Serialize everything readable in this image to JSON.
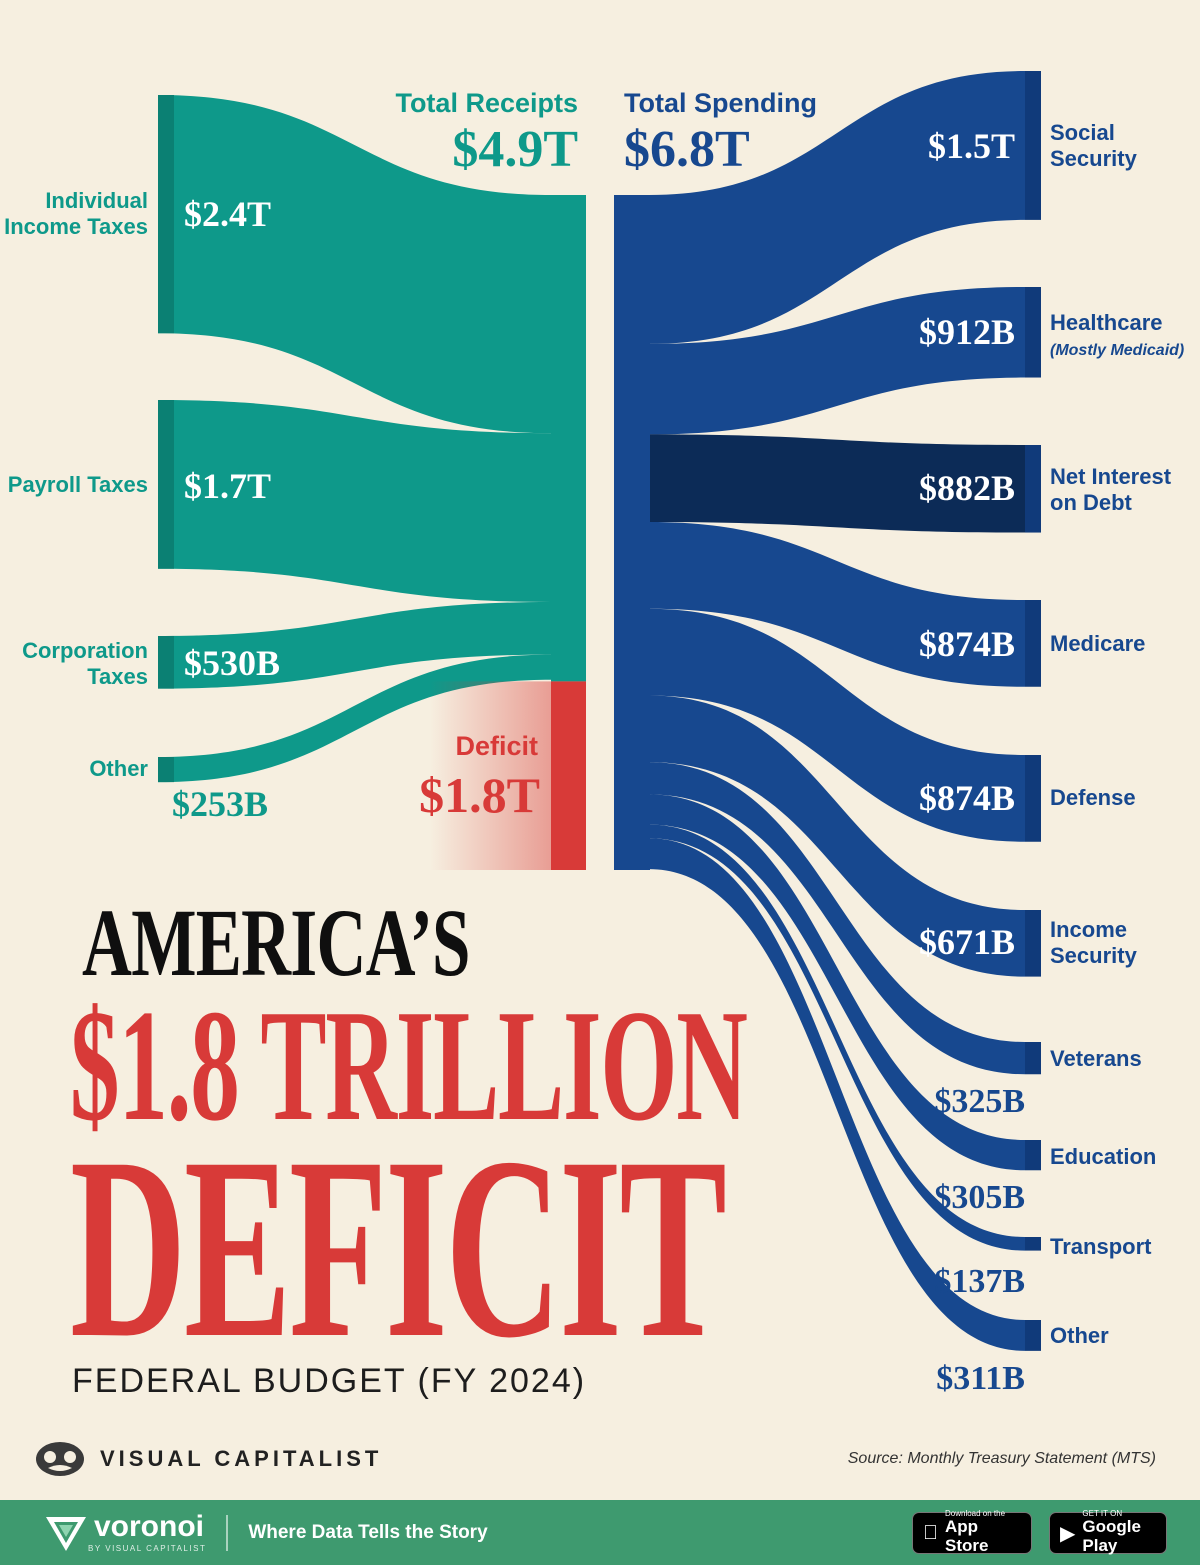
{
  "chart_data": {
    "type": "sankey",
    "title": "America's $1.8 Trillion Deficit",
    "subtitle": "Federal Budget (FY 2024)",
    "units": "USD",
    "receipts": {
      "label": "Total Receipts",
      "total_label": "$4.9T",
      "total": 4.9,
      "items": [
        {
          "name": "Individual Income Taxes",
          "lines": [
            "Individual",
            "Income Taxes"
          ],
          "value": 2.4,
          "value_label": "$2.4T"
        },
        {
          "name": "Payroll Taxes",
          "lines": [
            "Payroll Taxes"
          ],
          "value": 1.7,
          "value_label": "$1.7T"
        },
        {
          "name": "Corporation Taxes",
          "lines": [
            "Corporation",
            "Taxes"
          ],
          "value": 0.53,
          "value_label": "$530B"
        },
        {
          "name": "Other",
          "lines": [
            "Other"
          ],
          "value": 0.253,
          "value_label": "$253B"
        }
      ]
    },
    "deficit": {
      "label": "Deficit",
      "value": 1.8,
      "value_label": "$1.8T"
    },
    "spending": {
      "label": "Total Spending",
      "total_label": "$6.8T",
      "total": 6.8,
      "items": [
        {
          "name": "Social Security",
          "lines": [
            "Social",
            "Security"
          ],
          "note": "",
          "value": 1.5,
          "value_label": "$1.5T"
        },
        {
          "name": "Healthcare",
          "lines": [
            "Healthcare"
          ],
          "note": "(Mostly Medicaid)",
          "value": 0.912,
          "value_label": "$912B"
        },
        {
          "name": "Net Interest on Debt",
          "lines": [
            "Net Interest",
            "on Debt"
          ],
          "note": "",
          "value": 0.882,
          "value_label": "$882B",
          "highlight": true
        },
        {
          "name": "Medicare",
          "lines": [
            "Medicare"
          ],
          "note": "",
          "value": 0.874,
          "value_label": "$874B"
        },
        {
          "name": "Defense",
          "lines": [
            "Defense"
          ],
          "note": "",
          "value": 0.874,
          "value_label": "$874B"
        },
        {
          "name": "Income Security",
          "lines": [
            "Income",
            "Security"
          ],
          "note": "",
          "value": 0.671,
          "value_label": "$671B"
        },
        {
          "name": "Veterans",
          "lines": [
            "Veterans"
          ],
          "note": "",
          "value": 0.325,
          "value_label": "$325B"
        },
        {
          "name": "Education",
          "lines": [
            "Education"
          ],
          "note": "",
          "value": 0.305,
          "value_label": "$305B"
        },
        {
          "name": "Transport",
          "lines": [
            "Transport"
          ],
          "note": "",
          "value": 0.137,
          "value_label": "$137B"
        },
        {
          "name": "Other",
          "lines": [
            "Other"
          ],
          "note": "",
          "value": 0.311,
          "value_label": "$311B"
        }
      ]
    },
    "colors": {
      "receipts": "#0e998a",
      "receipts_dark": "#0b8073",
      "spending": "#17488f",
      "spending_dark": "#103a7a",
      "interest": "#0c2b57",
      "deficit": "#d83a38"
    }
  },
  "title": {
    "line1": "AMERICA’S",
    "line2": "$1.8 TRILLION",
    "line3": "DEFICIT",
    "subtitle": "FEDERAL BUDGET (FY 2024)"
  },
  "brand": {
    "name": "VISUAL CAPITALIST",
    "source": "Source: Monthly Treasury Statement (MTS)"
  },
  "footer": {
    "app_name": "voronoi",
    "app_sub": "BY VISUAL CAPITALIST",
    "tagline": "Where Data Tells the Story",
    "appstore_small": "Download on the",
    "appstore_big": "App Store",
    "play_small": "GET IT ON",
    "play_big": "Google Play"
  }
}
